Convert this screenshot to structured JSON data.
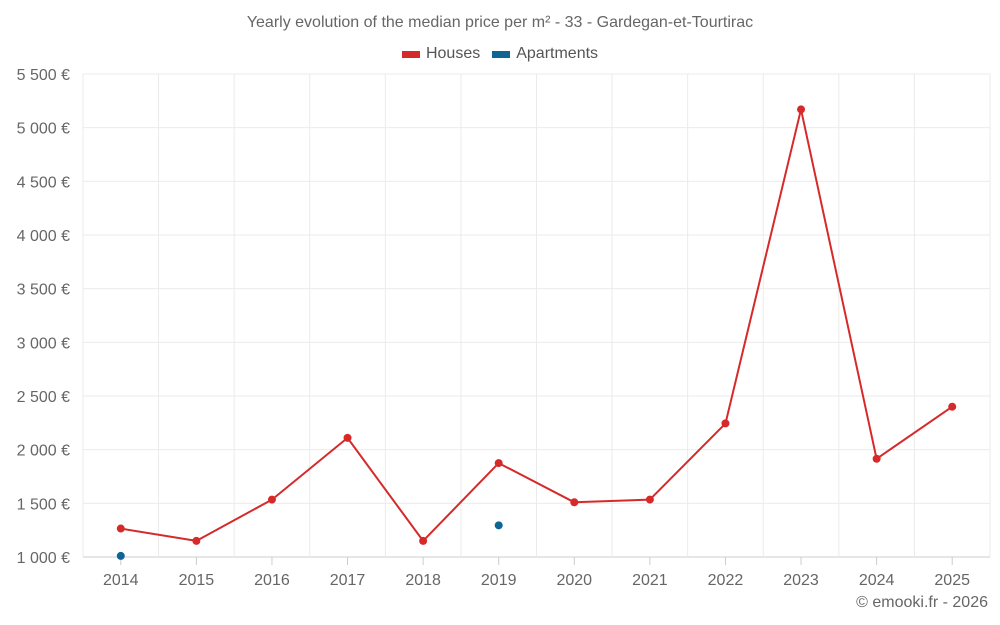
{
  "title": "Yearly evolution of the median price per m² - 33 - Gardegan-et-Tourtirac",
  "legend": [
    {
      "name": "Houses",
      "color": "#d62a2a"
    },
    {
      "name": "Apartments",
      "color": "#0e6596"
    }
  ],
  "credit": "© emooki.fr - 2026",
  "chart_data": {
    "type": "line",
    "title": "Yearly evolution of the median price per m² - 33 - Gardegan-et-Tourtirac",
    "xlabel": "",
    "ylabel": "",
    "categories": [
      "2014",
      "2015",
      "2016",
      "2017",
      "2018",
      "2019",
      "2020",
      "2021",
      "2022",
      "2023",
      "2024",
      "2025"
    ],
    "ylim": [
      1000,
      5500
    ],
    "yticks": [
      1000,
      1500,
      2000,
      2500,
      3000,
      3500,
      4000,
      4500,
      5000,
      5500
    ],
    "ytick_labels": [
      "1 000 €",
      "1 500 €",
      "2 000 €",
      "2 500 €",
      "3 000 €",
      "3 500 €",
      "4 000 €",
      "4 500 €",
      "5 000 €",
      "5 500 €"
    ],
    "grid": true,
    "legend_position": "top-center",
    "series": [
      {
        "name": "Houses",
        "color": "#d62a2a",
        "values": [
          1265,
          1150,
          1535,
          2110,
          1150,
          1875,
          1510,
          1535,
          2245,
          5170,
          1915,
          2400
        ]
      },
      {
        "name": "Apartments",
        "color": "#0e6596",
        "values": [
          1010,
          null,
          null,
          null,
          null,
          1295,
          null,
          null,
          null,
          null,
          null,
          null
        ]
      }
    ]
  }
}
